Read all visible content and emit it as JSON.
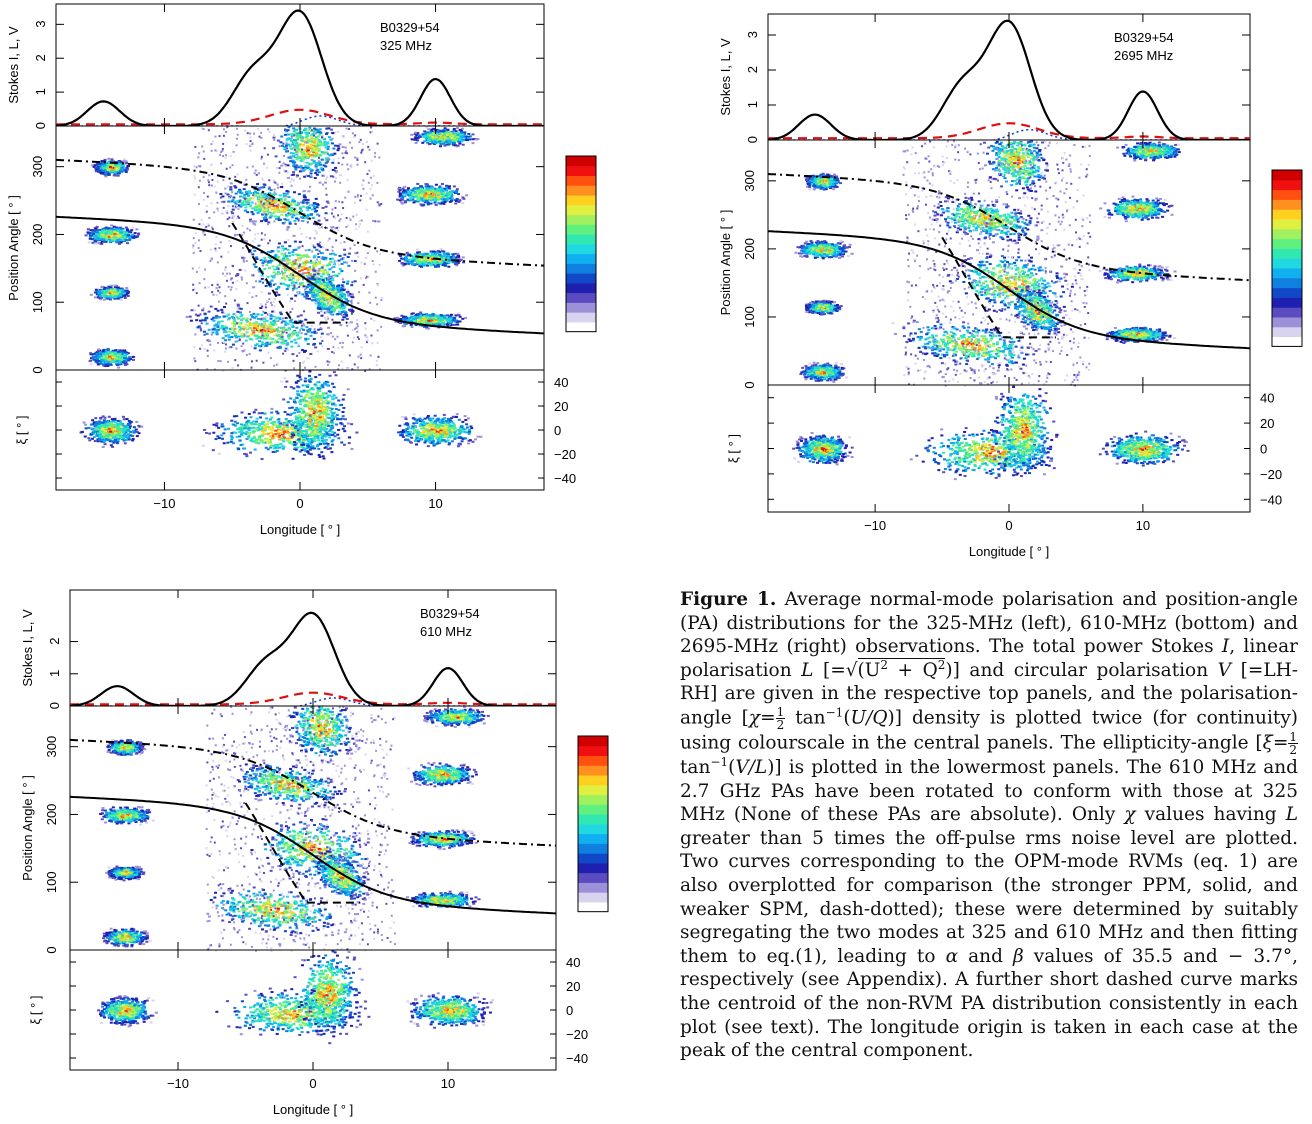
{
  "panels": [
    {
      "id": "p325",
      "pulsar": "B0329+54",
      "freq": "325 MHz",
      "stokes_ylabel": "Stokes I, L, V",
      "stokes_ticks": [
        "0",
        "1",
        "2",
        "3"
      ],
      "pa_ylabel": "Position Angle [ ° ]",
      "pa_ticks": [
        "0",
        "100",
        "200",
        "300"
      ],
      "ell_ylabel": "ξ [ ° ]",
      "ell_ticks": [
        "40",
        "20",
        "0",
        "−20",
        "−40"
      ],
      "x_ticks": [
        "−10",
        "0",
        "10"
      ],
      "xlabel": "Longitude [ ° ]",
      "stokes_I_peak": 3.3
    },
    {
      "id": "p2695",
      "pulsar": "B0329+54",
      "freq": "2695 MHz",
      "stokes_ylabel": "Stokes I, L, V",
      "stokes_ticks": [
        "0",
        "1",
        "2",
        "3"
      ],
      "pa_ylabel": "Position Angle [ ° ]",
      "pa_ticks": [
        "0",
        "100",
        "200",
        "300"
      ],
      "ell_ylabel": "ξ [ ° ]",
      "ell_ticks": [
        "40",
        "20",
        "0",
        "−20",
        "−40"
      ],
      "x_ticks": [
        "−10",
        "0",
        "10"
      ],
      "xlabel": "Longitude [ ° ]",
      "stokes_I_peak": 3.3
    },
    {
      "id": "p610",
      "pulsar": "B0329+54",
      "freq": "610 MHz",
      "stokes_ylabel": "Stokes I, L, V",
      "stokes_ticks": [
        "0",
        "1",
        "2"
      ],
      "pa_ylabel": "Position Angle [ ° ]",
      "pa_ticks": [
        "0",
        "100",
        "200",
        "300"
      ],
      "ell_ylabel": "ξ [ ° ]",
      "ell_ticks": [
        "40",
        "20",
        "0",
        "−20",
        "−40"
      ],
      "x_ticks": [
        "−10",
        "0",
        "10"
      ],
      "xlabel": "Longitude [ ° ]",
      "stokes_I_peak": 2.8
    }
  ],
  "chart_data": {
    "type": "heatmap",
    "x_range": [
      -18,
      18
    ],
    "stokes_I_components": [
      {
        "center": -14.5,
        "amp": 0.22,
        "width": 1.2
      },
      {
        "center": -3.5,
        "amp": 0.45,
        "width": 1.5
      },
      {
        "center": 0,
        "amp": 1.0,
        "width": 1.6
      },
      {
        "center": 10,
        "amp": 0.42,
        "width": 1.1
      }
    ],
    "pa_range": [
      0,
      360
    ],
    "ellipticity_range": [
      -50,
      50
    ],
    "rvm": {
      "alpha": 35.5,
      "beta": -3.7
    },
    "colors": {
      "I": "#000000",
      "L": "#e01010",
      "V": "#1030e0"
    }
  },
  "caption": {
    "label": "Figure 1.",
    "segments": [
      " Average normal-mode polarisation and position-angle (PA) distributions for the 325-MHz (left), 610-MHz (bottom) and 2695-MHz (right) observations. The total power Stokes ",
      "I",
      ", linear polarisation ",
      "L",
      " [=",
      "(U",
      "2",
      " + Q",
      "2",
      ")] and circular polarisation ",
      "V",
      " [=LH-RH] are given in the respective top panels, and the polarisation-angle [",
      "χ",
      "=",
      "1",
      "2",
      " tan",
      "−1",
      "(",
      "U/Q",
      ")] density is plotted twice (for continuity) using colourscale in the central panels. The ellipticity-angle [",
      "ξ",
      "=",
      "1",
      "2",
      " tan",
      "−1",
      "(",
      "V/L",
      ")] is plotted in the lowermost panels. The 610 MHz and 2.7 GHz PAs have been rotated to conform with those at 325 MHz (None of these PAs are absolute). Only ",
      "χ",
      " values having ",
      "L",
      " greater than 5 times the off-pulse rms noise level are plotted. Two curves corresponding to the OPM-mode RVMs (eq. 1) are also overplotted for comparison (the stronger PPM, solid, and weaker SPM, dash-dotted); these were determined by suitably segregating the two modes at 325 and 610 MHz and then fitting them to eq.(1), leading to ",
      "α",
      " and ",
      "β",
      " values of 35.5 and − 3.7°, respectively (see Appendix). A further short dashed curve marks the centroid of the non-RVM PA distribution consistently in each plot (see text). The longitude origin is taken in each case at the peak of the central component."
    ]
  }
}
